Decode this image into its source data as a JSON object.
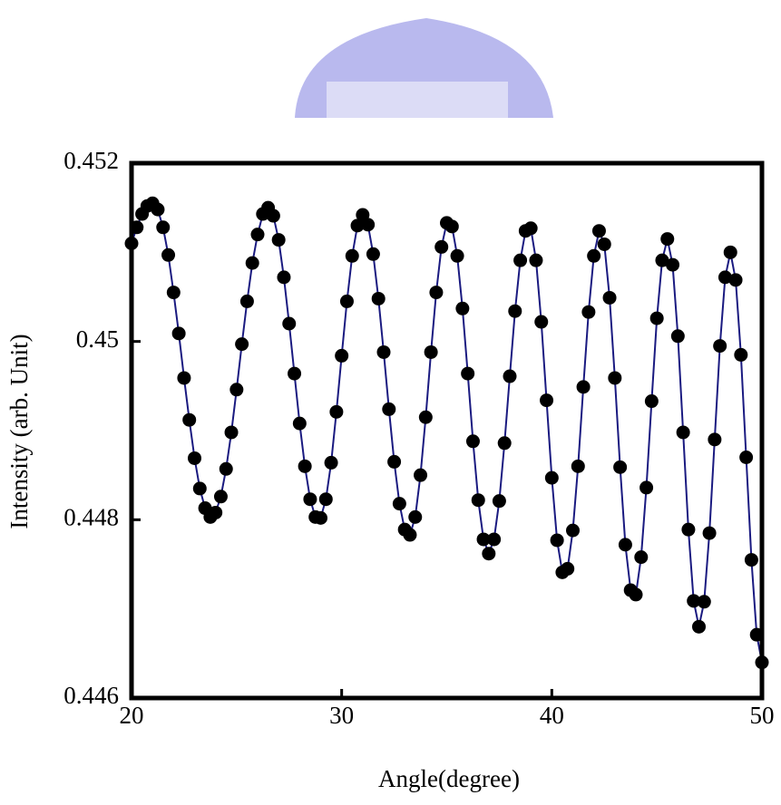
{
  "chart_data": {
    "type": "line",
    "x_label": "Angle(degree)",
    "y_label": "Intensity (arb. Unit)",
    "xlim": [
      20,
      50
    ],
    "ylim": [
      0.446,
      0.452
    ],
    "xticks": [
      20,
      30,
      40,
      50
    ],
    "yticks": [
      0.446,
      0.448,
      0.45,
      0.452
    ],
    "series": [
      {
        "color": "#000000",
        "line_color": "#1a1a80",
        "x": [
          20,
          20.25,
          20.5,
          20.75,
          21,
          21.25,
          21.5,
          21.75,
          22,
          22.25,
          22.5,
          22.75,
          23,
          23.25,
          23.5,
          23.75,
          24,
          24.25,
          24.5,
          24.75,
          25,
          25.25,
          25.5,
          25.75,
          26,
          26.25,
          26.5,
          26.75,
          27,
          27.25,
          27.5,
          27.75,
          28,
          28.25,
          28.5,
          28.75,
          29,
          29.25,
          29.5,
          29.75,
          30,
          30.25,
          30.5,
          30.75,
          31,
          31.25,
          31.5,
          31.75,
          32,
          32.25,
          32.5,
          32.75,
          33,
          33.25,
          33.5,
          33.75,
          34,
          34.25,
          34.5,
          34.75,
          35,
          35.25,
          35.5,
          35.75,
          36,
          36.25,
          36.5,
          36.75,
          37,
          37.25,
          37.5,
          37.75,
          38,
          38.25,
          38.5,
          38.75,
          39,
          39.25,
          39.5,
          39.75,
          40,
          40.25,
          40.5,
          40.75,
          41,
          41.25,
          41.5,
          41.75,
          42,
          42.25,
          42.5,
          42.75,
          43,
          43.25,
          43.5,
          43.75,
          44,
          44.25,
          44.5,
          44.75,
          45,
          45.25,
          45.5,
          45.75,
          46,
          46.25,
          46.5,
          46.75,
          47,
          47.25,
          47.5,
          47.75,
          48,
          48.25,
          48.5,
          48.75,
          49,
          49.25,
          49.5,
          49.75,
          50
        ],
        "values": [
          0.4511,
          0.45128,
          0.45143,
          0.45152,
          0.45155,
          0.45148,
          0.45128,
          0.45097,
          0.45055,
          0.45009,
          0.44959,
          0.44912,
          0.44869,
          0.44835,
          0.44813,
          0.44803,
          0.44808,
          0.44826,
          0.44857,
          0.44898,
          0.44946,
          0.44997,
          0.45045,
          0.45088,
          0.4512,
          0.45143,
          0.4515,
          0.45141,
          0.45114,
          0.45072,
          0.4502,
          0.44964,
          0.44908,
          0.4486,
          0.44823,
          0.44803,
          0.44802,
          0.44823,
          0.44864,
          0.44921,
          0.44984,
          0.45045,
          0.45096,
          0.4513,
          0.45142,
          0.45131,
          0.45098,
          0.45048,
          0.44988,
          0.44924,
          0.44865,
          0.44818,
          0.44789,
          0.44783,
          0.44803,
          0.4485,
          0.44915,
          0.44988,
          0.45055,
          0.45106,
          0.45133,
          0.45129,
          0.45096,
          0.45037,
          0.44964,
          0.44888,
          0.44822,
          0.44778,
          0.44762,
          0.44778,
          0.44821,
          0.44886,
          0.44961,
          0.45034,
          0.45091,
          0.45124,
          0.45127,
          0.45091,
          0.45022,
          0.44934,
          0.44847,
          0.44777,
          0.44741,
          0.44745,
          0.44788,
          0.4486,
          0.44949,
          0.45033,
          0.45096,
          0.45124,
          0.45109,
          0.45049,
          0.44959,
          0.44859,
          0.44772,
          0.44721,
          0.44716,
          0.44758,
          0.44836,
          0.44933,
          0.45026,
          0.45091,
          0.45115,
          0.45086,
          0.45006,
          0.44898,
          0.44789,
          0.44709,
          0.4468,
          0.44708,
          0.44785,
          0.4489,
          0.44995,
          0.45072,
          0.451,
          0.45069,
          0.44985,
          0.4487,
          0.44755,
          0.44671,
          0.4464
        ]
      }
    ]
  }
}
